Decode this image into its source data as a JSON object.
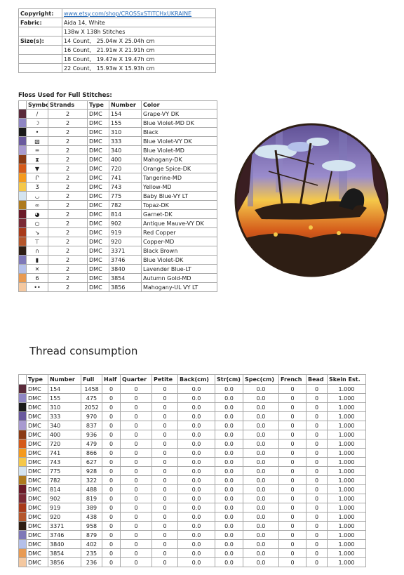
{
  "info": {
    "rows": [
      {
        "label": "Copyright:",
        "values": [
          "www.etsy.com/shop/CROSSxSTITCHxUKRAINE"
        ]
      },
      {
        "label": "Fabric:",
        "values": [
          "Aida 14, White",
          "138w X 138h Stitches"
        ]
      },
      {
        "label": "Size(s):",
        "values": [
          "14 Count,   25.04w X 25.04h cm",
          "16 Count,   21.91w X 21.91h cm",
          "18 Count,   19.47w X 19.47h cm",
          "22 Count,   15.93w X 15.93h cm"
        ]
      }
    ]
  },
  "floss": {
    "title": "Floss Used for Full Stitches:",
    "header": [
      "Symbol",
      "Strands",
      "Type",
      "Number",
      "Color"
    ],
    "rows": [
      {
        "swatch": "#5a2a3a",
        "cells": [
          "/",
          "2",
          "DMC",
          "154",
          "Grape-VY DK"
        ]
      },
      {
        "swatch": "#8f86c4",
        "cells": [
          "☽",
          "2",
          "DMC",
          "155",
          "Blue Violet-MD DK"
        ]
      },
      {
        "swatch": "#1a1a1a",
        "cells": [
          "•",
          "2",
          "DMC",
          "310",
          "Black"
        ]
      },
      {
        "swatch": "#6a5a9e",
        "cells": [
          "▧",
          "2",
          "DMC",
          "333",
          "Blue Violet-VY DK"
        ]
      },
      {
        "swatch": "#a89ad0",
        "cells": [
          "═",
          "2",
          "DMC",
          "340",
          "Blue Violet-MD"
        ]
      },
      {
        "swatch": "#8a3a14",
        "cells": [
          "⧗",
          "2",
          "DMC",
          "400",
          "Mahogany-DK"
        ]
      },
      {
        "swatch": "#d45a1a",
        "cells": [
          "▼",
          "2",
          "DMC",
          "720",
          "Orange Spice-DK"
        ]
      },
      {
        "swatch": "#f59a1e",
        "cells": [
          "Ր",
          "2",
          "DMC",
          "741",
          "Tangerine-MD"
        ]
      },
      {
        "swatch": "#f5c84a",
        "cells": [
          "Ʒ",
          "2",
          "DMC",
          "743",
          "Yellow-MD"
        ]
      },
      {
        "swatch": "#d4e4f0",
        "cells": [
          "◡",
          "2",
          "DMC",
          "775",
          "Baby Blue-VY LT"
        ]
      },
      {
        "swatch": "#ae7a1e",
        "cells": [
          "∞",
          "2",
          "DMC",
          "782",
          "Topaz-DK"
        ]
      },
      {
        "swatch": "#6a1a28",
        "cells": [
          "◕",
          "2",
          "DMC",
          "814",
          "Garnet-DK"
        ]
      },
      {
        "swatch": "#7a2a36",
        "cells": [
          "○",
          "2",
          "DMC",
          "902",
          "Antique Mauve-VY DK"
        ]
      },
      {
        "swatch": "#a83a1a",
        "cells": [
          "↘",
          "2",
          "DMC",
          "919",
          "Red Copper"
        ]
      },
      {
        "swatch": "#b4562c",
        "cells": [
          "⊤",
          "2",
          "DMC",
          "920",
          "Copper-MD"
        ]
      },
      {
        "swatch": "#2e1e14",
        "cells": [
          "∩",
          "2",
          "DMC",
          "3371",
          "Black Brown"
        ]
      },
      {
        "swatch": "#7e78b8",
        "cells": [
          "▮",
          "2",
          "DMC",
          "3746",
          "Blue Violet-DK"
        ]
      },
      {
        "swatch": "#b4c0ea",
        "cells": [
          "✕",
          "2",
          "DMC",
          "3840",
          "Lavender Blue-LT"
        ]
      },
      {
        "swatch": "#e89a52",
        "cells": [
          "6",
          "2",
          "DMC",
          "3854",
          "Autumn Gold-MD"
        ]
      },
      {
        "swatch": "#f4c8a0",
        "cells": [
          "••",
          "2",
          "DMC",
          "3856",
          "Mahogany-UL VY LT"
        ]
      }
    ]
  },
  "thread": {
    "title": "Thread consumption",
    "header": [
      "Type",
      "Number",
      "Full",
      "Half",
      "Quarter",
      "Petite",
      "Back(cm)",
      "Str(cm)",
      "Spec(cm)",
      "French",
      "Bead",
      "Skein Est."
    ],
    "rows": [
      [
        "DMC",
        "154",
        "1458",
        "0",
        "0",
        "0",
        "0.0",
        "0.0",
        "0.0",
        "0",
        "0",
        "1.000"
      ],
      [
        "DMC",
        "155",
        "475",
        "0",
        "0",
        "0",
        "0.0",
        "0.0",
        "0.0",
        "0",
        "0",
        "1.000"
      ],
      [
        "DMC",
        "310",
        "2052",
        "0",
        "0",
        "0",
        "0.0",
        "0.0",
        "0.0",
        "0",
        "0",
        "1.000"
      ],
      [
        "DMC",
        "333",
        "970",
        "0",
        "0",
        "0",
        "0.0",
        "0.0",
        "0.0",
        "0",
        "0",
        "1.000"
      ],
      [
        "DMC",
        "340",
        "837",
        "0",
        "0",
        "0",
        "0.0",
        "0.0",
        "0.0",
        "0",
        "0",
        "1.000"
      ],
      [
        "DMC",
        "400",
        "936",
        "0",
        "0",
        "0",
        "0.0",
        "0.0",
        "0.0",
        "0",
        "0",
        "1.000"
      ],
      [
        "DMC",
        "720",
        "479",
        "0",
        "0",
        "0",
        "0.0",
        "0.0",
        "0.0",
        "0",
        "0",
        "1.000"
      ],
      [
        "DMC",
        "741",
        "866",
        "0",
        "0",
        "0",
        "0.0",
        "0.0",
        "0.0",
        "0",
        "0",
        "1.000"
      ],
      [
        "DMC",
        "743",
        "627",
        "0",
        "0",
        "0",
        "0.0",
        "0.0",
        "0.0",
        "0",
        "0",
        "1.000"
      ],
      [
        "DMC",
        "775",
        "928",
        "0",
        "0",
        "0",
        "0.0",
        "0.0",
        "0.0",
        "0",
        "0",
        "1.000"
      ],
      [
        "DMC",
        "782",
        "322",
        "0",
        "0",
        "0",
        "0.0",
        "0.0",
        "0.0",
        "0",
        "0",
        "1.000"
      ],
      [
        "DMC",
        "814",
        "488",
        "0",
        "0",
        "0",
        "0.0",
        "0.0",
        "0.0",
        "0",
        "0",
        "1.000"
      ],
      [
        "DMC",
        "902",
        "819",
        "0",
        "0",
        "0",
        "0.0",
        "0.0",
        "0.0",
        "0",
        "0",
        "1.000"
      ],
      [
        "DMC",
        "919",
        "389",
        "0",
        "0",
        "0",
        "0.0",
        "0.0",
        "0.0",
        "0",
        "0",
        "1.000"
      ],
      [
        "DMC",
        "920",
        "438",
        "0",
        "0",
        "0",
        "0.0",
        "0.0",
        "0.0",
        "0",
        "0",
        "1.000"
      ],
      [
        "DMC",
        "3371",
        "958",
        "0",
        "0",
        "0",
        "0.0",
        "0.0",
        "0.0",
        "0",
        "0",
        "1.000"
      ],
      [
        "DMC",
        "3746",
        "879",
        "0",
        "0",
        "0",
        "0.0",
        "0.0",
        "0.0",
        "0",
        "0",
        "1.000"
      ],
      [
        "DMC",
        "3840",
        "402",
        "0",
        "0",
        "0",
        "0.0",
        "0.0",
        "0.0",
        "0",
        "0",
        "1.000"
      ],
      [
        "DMC",
        "3854",
        "235",
        "0",
        "0",
        "0",
        "0.0",
        "0.0",
        "0.0",
        "0",
        "0",
        "1.000"
      ],
      [
        "DMC",
        "3856",
        "236",
        "0",
        "0",
        "0",
        "0.0",
        "0.0",
        "0.0",
        "0",
        "0",
        "1.000"
      ]
    ]
  }
}
